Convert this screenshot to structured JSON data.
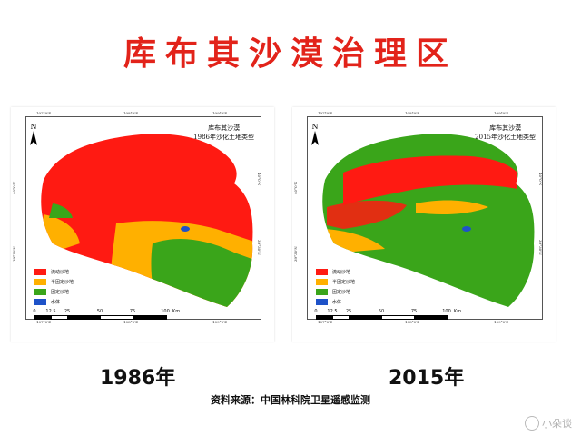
{
  "title": "库布其沙漠治理区",
  "maps": [
    {
      "id": "1986",
      "caption_line1": "库布其沙漠",
      "caption_line2": "1986年沙化土地类型",
      "year_label": "1986年",
      "class_shares": {
        "流动沙地": 0.62,
        "半固定沙地": 0.18,
        "固定沙地": 0.19,
        "水体": 0.01
      }
    },
    {
      "id": "2015",
      "caption_line1": "库布其沙漠",
      "caption_line2": "2015年沙化土地类型",
      "year_label": "2015年",
      "class_shares": {
        "流动沙地": 0.22,
        "半固定沙地": 0.14,
        "固定沙地": 0.63,
        "水体": 0.01
      }
    }
  ],
  "legend": [
    {
      "label": "流动沙地",
      "color": "#ff1a12"
    },
    {
      "label": "半固定沙地",
      "color": "#ffb000"
    },
    {
      "label": "固定沙地",
      "color": "#3aa51a"
    },
    {
      "label": "水体",
      "color": "#1e52c8"
    }
  ],
  "scale": {
    "ticks": [
      "0",
      "12.5",
      "25",
      "50",
      "75",
      "100"
    ],
    "unit": "Km"
  },
  "graticule": {
    "top": [
      "107°0'E",
      "108°0'E",
      "109°0'E"
    ],
    "bottom": [
      "107°0'E",
      "108°0'E",
      "109°0'E"
    ],
    "left": [
      "40°0'N",
      "39°30'N"
    ],
    "right": [
      "40°0'N",
      "39°30'N"
    ]
  },
  "north_label": "N",
  "source": "资料来源：中国林科院卫星遥感监测",
  "watermark": "小朵谈"
}
